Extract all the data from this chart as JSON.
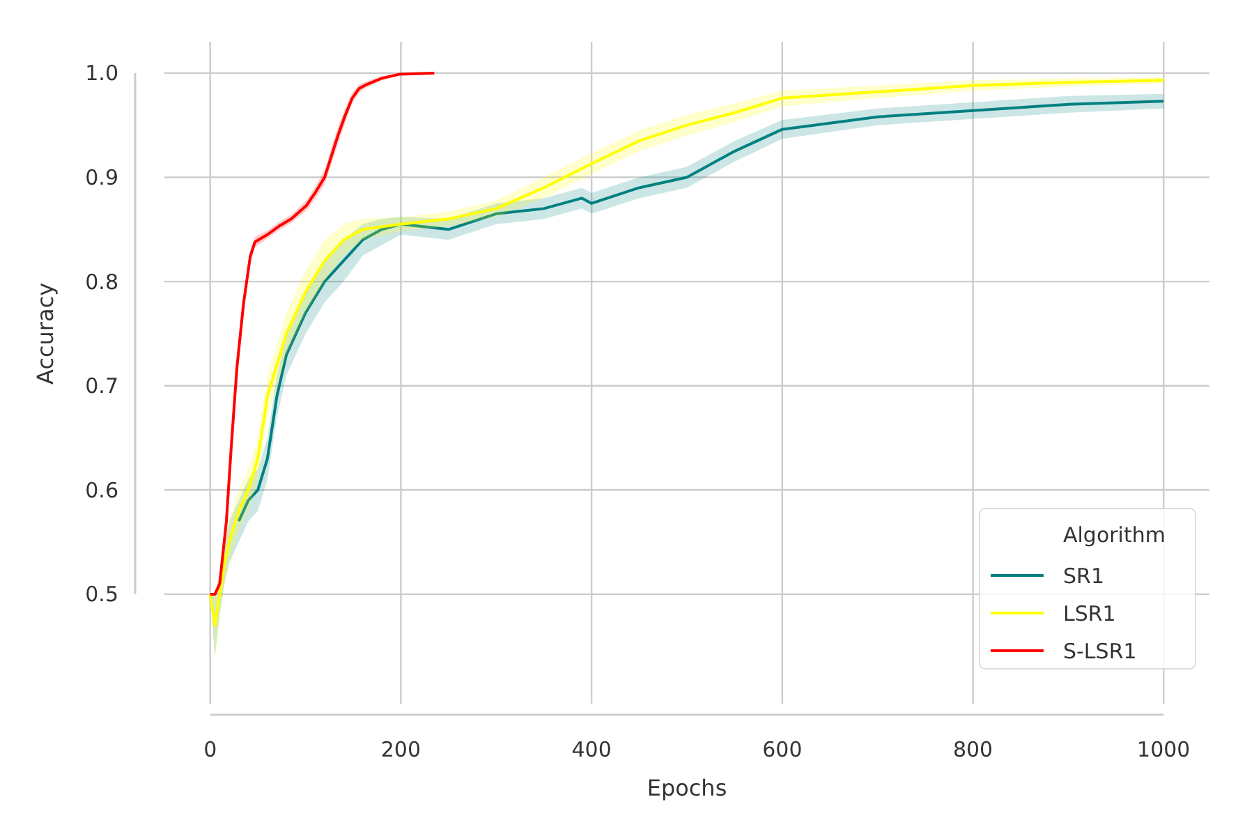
{
  "chart_data": {
    "type": "line",
    "xlabel": "Epochs",
    "ylabel": "Accuracy",
    "legend_title": "Algorithm",
    "legend": "bottom right",
    "grid": true,
    "line_style": "solid",
    "marker": "none",
    "xlim": [
      -48,
      1048
    ],
    "xticks": [
      0,
      200,
      400,
      600,
      800,
      1000
    ],
    "ylim": [
      0.395,
      1.03
    ],
    "yticks": [
      0.5,
      0.6,
      0.7,
      0.8,
      0.9,
      {
        "value": 1,
        "label": "1.0"
      }
    ],
    "series": [
      {
        "name": "SR1",
        "color": "#008080",
        "x": [
          0,
          5,
          10,
          15,
          20,
          30,
          40,
          50,
          60,
          70,
          80,
          90,
          100,
          120,
          140,
          160,
          180,
          200,
          250,
          300,
          350,
          390,
          400,
          450,
          500,
          550,
          600,
          700,
          800,
          900,
          1000
        ],
        "values": [
          null,
          null,
          null,
          null,
          null,
          0.57,
          0.59,
          0.6,
          0.63,
          0.69,
          0.73,
          0.75,
          0.77,
          0.8,
          0.82,
          0.84,
          0.85,
          0.855,
          0.85,
          0.865,
          0.87,
          0.88,
          0.875,
          0.89,
          0.9,
          0.925,
          0.946,
          0.958,
          0.964,
          0.97,
          0.973
        ],
        "lower": [
          0.5,
          0.44,
          0.48,
          0.51,
          0.53,
          0.55,
          0.57,
          0.58,
          0.61,
          0.67,
          0.71,
          0.73,
          0.75,
          0.78,
          0.8,
          0.825,
          0.835,
          0.845,
          0.84,
          0.855,
          0.86,
          0.87,
          0.865,
          0.88,
          0.89,
          0.915,
          0.937,
          0.95,
          0.956,
          0.962,
          0.966
        ],
        "upper": [
          0.5,
          0.5,
          0.52,
          0.55,
          0.57,
          0.59,
          0.61,
          0.62,
          0.65,
          0.71,
          0.75,
          0.77,
          0.79,
          0.82,
          0.84,
          0.855,
          0.86,
          0.862,
          0.86,
          0.875,
          0.88,
          0.89,
          0.885,
          0.9,
          0.91,
          0.935,
          0.955,
          0.966,
          0.972,
          0.978,
          0.98
        ]
      },
      {
        "name": "LSR1",
        "color": "#ffff00",
        "x": [
          0,
          5,
          10,
          15,
          20,
          30,
          40,
          50,
          60,
          70,
          80,
          90,
          100,
          120,
          140,
          160,
          200,
          250,
          300,
          350,
          400,
          450,
          500,
          550,
          600,
          700,
          800,
          900,
          1000
        ],
        "values": [
          0.5,
          0.47,
          0.5,
          0.53,
          0.55,
          0.58,
          0.6,
          0.63,
          0.69,
          0.72,
          0.75,
          0.77,
          0.79,
          0.82,
          0.84,
          0.85,
          0.855,
          0.86,
          0.87,
          0.89,
          0.913,
          0.935,
          0.95,
          0.962,
          0.976,
          0.982,
          0.988,
          0.991,
          0.993
        ],
        "lower": [
          0.5,
          0.44,
          0.48,
          0.51,
          0.53,
          0.56,
          0.58,
          0.61,
          0.67,
          0.7,
          0.73,
          0.75,
          0.77,
          0.8,
          0.825,
          0.84,
          0.848,
          0.853,
          0.862,
          0.88,
          0.903,
          0.925,
          0.94,
          0.953,
          0.968,
          0.976,
          0.983,
          0.987,
          0.99
        ],
        "upper": [
          0.5,
          0.5,
          0.52,
          0.55,
          0.57,
          0.6,
          0.62,
          0.65,
          0.71,
          0.74,
          0.77,
          0.79,
          0.81,
          0.84,
          0.855,
          0.86,
          0.862,
          0.867,
          0.878,
          0.9,
          0.923,
          0.945,
          0.96,
          0.971,
          0.983,
          0.988,
          0.993,
          0.995,
          0.996
        ]
      },
      {
        "name": "S-LSR1",
        "color": "#ff0000",
        "x": [
          0,
          5,
          10,
          17,
          22,
          28,
          35,
          42,
          47,
          60,
          72,
          85,
          101,
          110,
          120,
          127,
          134,
          141,
          149,
          156,
          164,
          180,
          199,
          235
        ],
        "values": [
          0.5,
          0.5,
          0.51,
          0.57,
          0.64,
          0.717,
          0.779,
          0.824,
          0.838,
          0.845,
          0.853,
          0.86,
          0.873,
          0.885,
          0.9,
          0.92,
          0.94,
          0.958,
          0.976,
          0.985,
          0.989,
          0.995,
          0.999,
          1.0
        ],
        "lower": [
          0.5,
          0.5,
          0.505,
          0.56,
          0.63,
          0.707,
          0.77,
          0.818,
          0.833,
          0.841,
          0.849,
          0.856,
          0.868,
          0.879,
          0.893,
          0.912,
          0.932,
          0.951,
          0.971,
          0.981,
          0.986,
          0.993,
          0.998,
          1.0
        ],
        "upper": [
          0.5,
          0.5,
          0.515,
          0.58,
          0.65,
          0.727,
          0.788,
          0.83,
          0.843,
          0.849,
          0.857,
          0.864,
          0.878,
          0.891,
          0.907,
          0.928,
          0.948,
          0.965,
          0.981,
          0.989,
          0.992,
          0.997,
          1.0,
          1.0
        ]
      }
    ]
  }
}
